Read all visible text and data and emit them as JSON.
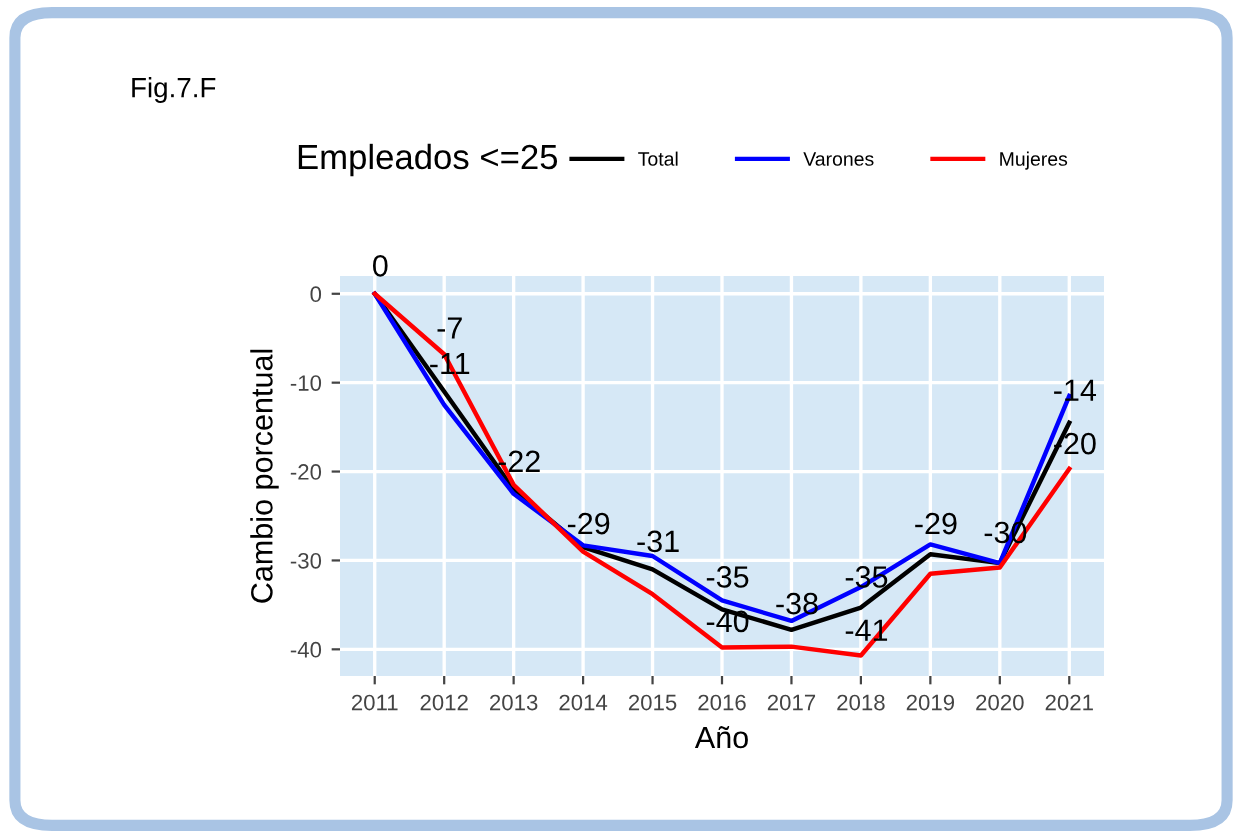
{
  "chart_data": {
    "type": "line",
    "title": "Fig.7.F",
    "xlabel": "Año",
    "ylabel": "Cambio porcentual",
    "legend_title": "Empleados <=25",
    "x": [
      2011,
      2012,
      2013,
      2014,
      2015,
      2016,
      2017,
      2018,
      2019,
      2020,
      2021
    ],
    "series": [
      {
        "name": "Total",
        "color": "#000000",
        "values": [
          0,
          -11,
          -22,
          -28.5,
          -31,
          -35.5,
          -37.8,
          -35.3,
          -29.3,
          -30.3,
          -14.5
        ]
      },
      {
        "name": "Varones",
        "color": "#0000ff",
        "values": [
          0,
          -12.5,
          -22.5,
          -28.3,
          -29.5,
          -34.5,
          -36.8,
          -33,
          -28.2,
          -30.3,
          -11.5
        ]
      },
      {
        "name": "Mujeres",
        "color": "#ff0000",
        "values": [
          0,
          -6.8,
          -21.5,
          -29,
          -33.8,
          -39.8,
          -39.7,
          -40.7,
          -31.5,
          -30.8,
          -19.7
        ]
      }
    ],
    "annotations": [
      {
        "text": "0",
        "x": 2011,
        "y": 0
      },
      {
        "text": "-7",
        "x": 2012,
        "y": -7
      },
      {
        "text": "-11",
        "x": 2012,
        "y": -11
      },
      {
        "text": "-22",
        "x": 2013,
        "y": -22
      },
      {
        "text": "-29",
        "x": 2014,
        "y": -29
      },
      {
        "text": "-31",
        "x": 2015,
        "y": -31
      },
      {
        "text": "-35",
        "x": 2016,
        "y": -35
      },
      {
        "text": "-40",
        "x": 2016,
        "y": -40
      },
      {
        "text": "-38",
        "x": 2017,
        "y": -38
      },
      {
        "text": "-35",
        "x": 2018,
        "y": -35
      },
      {
        "text": "-41",
        "x": 2018,
        "y": -41
      },
      {
        "text": "-29",
        "x": 2019,
        "y": -29
      },
      {
        "text": "-30",
        "x": 2020,
        "y": -30
      },
      {
        "text": "-14",
        "x": 2021,
        "y": -14
      },
      {
        "text": "-20",
        "x": 2021,
        "y": -20
      }
    ],
    "xlim": [
      2010.5,
      2021.5
    ],
    "xticks": [
      2011,
      2012,
      2013,
      2014,
      2015,
      2016,
      2017,
      2018,
      2019,
      2020,
      2021
    ],
    "ylim": [
      -43,
      2
    ],
    "yticks": [
      -40,
      -30,
      -20,
      -10,
      0
    ],
    "grid": true,
    "legend": "top",
    "marker": "none",
    "line_style": "solid"
  }
}
